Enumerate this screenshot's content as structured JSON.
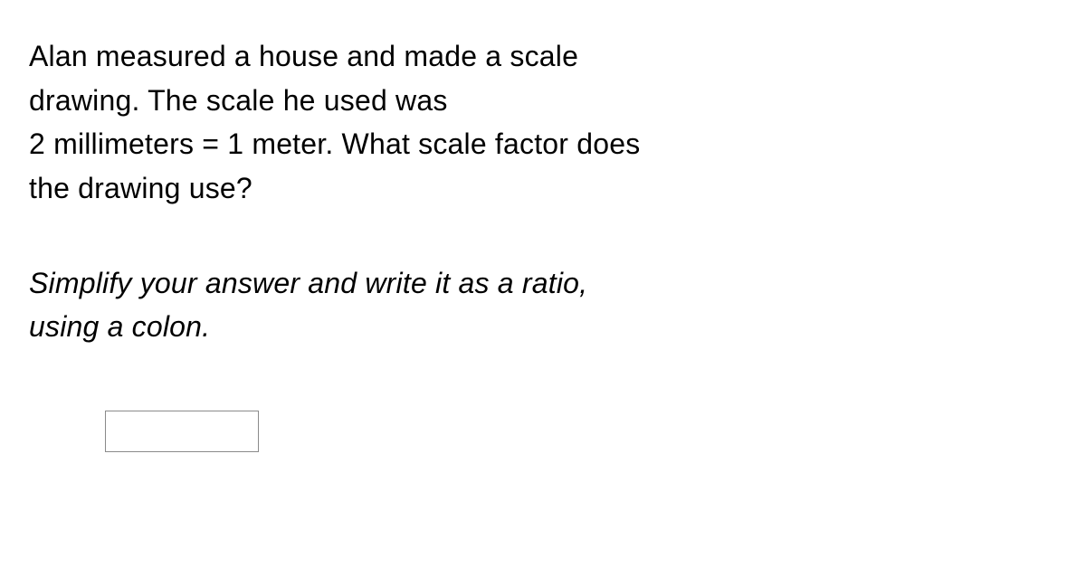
{
  "text": {
    "line1": "Alan measured a house and made a scale",
    "line2": "drawing. The scale he used was",
    "line3": "2 millimeters = 1 meter. What scale factor does",
    "line4": "the drawing use?",
    "instruction1": "Simplify your answer and write it as a ratio,",
    "instruction2": "using a colon."
  },
  "answer": {
    "value": ""
  },
  "style": {
    "font_family": "Verdana, Geneva, sans-serif",
    "font_size_pt": 24,
    "text_color": "#000000",
    "background_color": "#ffffff",
    "input_border_color": "#8a8a8a"
  }
}
